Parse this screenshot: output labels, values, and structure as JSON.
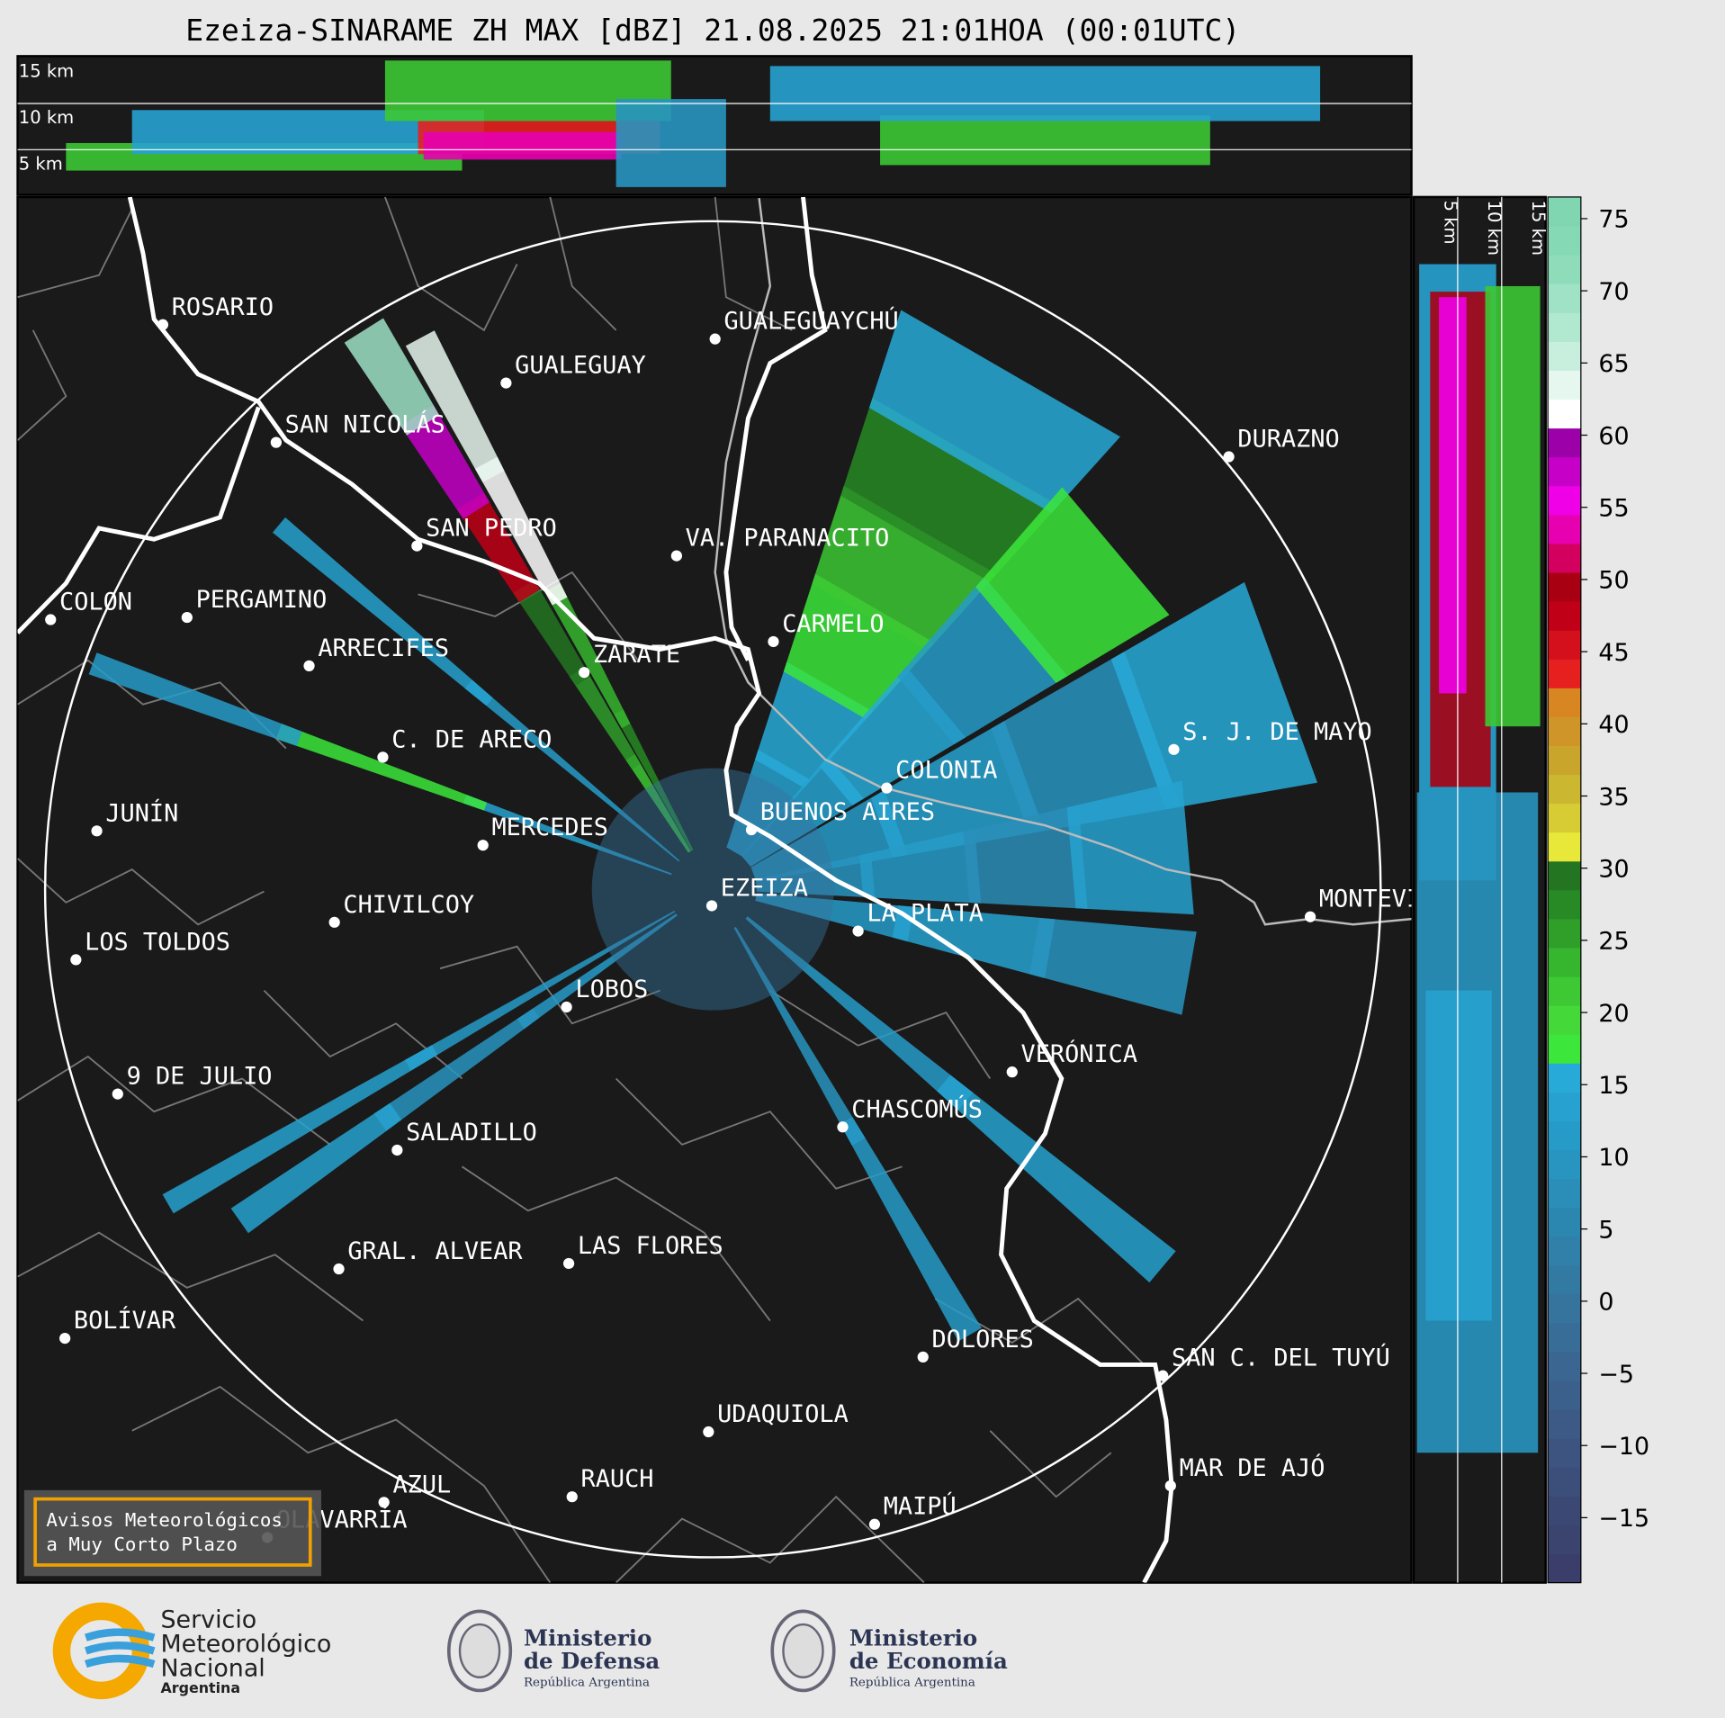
{
  "title": "Ezeiza-SINARAME ZH MAX [dBZ] 21.08.2025 21:01HOA (00:01UTC)",
  "height_labels": [
    "5 km",
    "10 km",
    "15 km"
  ],
  "cities": [
    "ROSARIO",
    "GUALEGUAYCHÚ",
    "GUALEGUAY",
    "SAN NICOLÁS",
    "DURAZNO",
    "SAN PEDRO",
    "VA. PARANACITO",
    "COLON",
    "PERGAMINO",
    "CARMELO",
    "ARRECIFES",
    "ZÁRATE",
    "S. J. DE MAYO",
    "C. DE ARECO",
    "COLONIA",
    "BUENOS AIRES",
    "JUNÍN",
    "MERCEDES",
    "EZEIZA",
    "MONTEVIDEO",
    "LA PLATA",
    "CHIVILCOY",
    "LOS TOLDOS",
    "LOBOS",
    "VERÓNICA",
    "9 DE JULIO",
    "CHASCOMÚS",
    "SALADILLO",
    "GRAL. ALVEAR",
    "LAS FLORES",
    "BOLÍVAR",
    "DOLORES",
    "SAN C. DEL TUYÚ",
    "UDAQUIOLA",
    "MAR DE AJÓ",
    "RAUCH",
    "AZUL",
    "OLAVARRÍA",
    "MAIPÚ"
  ],
  "colorbar": {
    "type": "colorbar",
    "lim": [
      -19.5,
      76.5
    ],
    "ticks": [
      {
        "value": -15,
        "label": "−15"
      },
      {
        "value": -10,
        "label": "−10"
      },
      {
        "value": -5,
        "label": "−5"
      },
      0,
      5,
      10,
      15,
      20,
      25,
      30,
      35,
      40,
      45,
      50,
      55,
      60,
      65,
      70,
      75
    ],
    "colors": [
      "#3b3d6a",
      "#3b436f",
      "#3c4874",
      "#3c4e7a",
      "#3c547f",
      "#3c5a85",
      "#3b608b",
      "#3a6691",
      "#386d97",
      "#36739d",
      "#337aa3",
      "#3080aa",
      "#2c87b0",
      "#2a8eb8",
      "#2894c0",
      "#279bc8",
      "#27a2d0",
      "#28aad8",
      "#3ce63a",
      "#44d838",
      "#3dc834",
      "#36b52f",
      "#2f9f2a",
      "#288a25",
      "#237522",
      "#e8e83a",
      "#d8cc34",
      "#cbb830",
      "#c9a52c",
      "#d09528",
      "#d88622",
      "#e6201f",
      "#d3101c",
      "#c00017",
      "#a80012",
      "#d30060",
      "#e600b0",
      "#f000e6",
      "#c600c6",
      "#9c00a8",
      "#ffffff",
      "#e6f7ef",
      "#c8efde",
      "#b0e8d0",
      "#9fe2c6",
      "#8fdcbb",
      "#86d9b5",
      "#80d6b1"
    ]
  },
  "notice": [
    "Avisos Meteorológicos",
    "a Muy Corto Plazo"
  ],
  "logos": [
    {
      "lines": [
        "Servicio",
        "Meteorológico",
        "Nacional"
      ],
      "sub": "Argentina"
    },
    {
      "lines": [
        "Ministerio",
        "de Defensa"
      ],
      "sub": "República Argentina"
    },
    {
      "lines": [
        "Ministerio",
        "de Economía"
      ],
      "sub": "República Argentina"
    }
  ]
}
